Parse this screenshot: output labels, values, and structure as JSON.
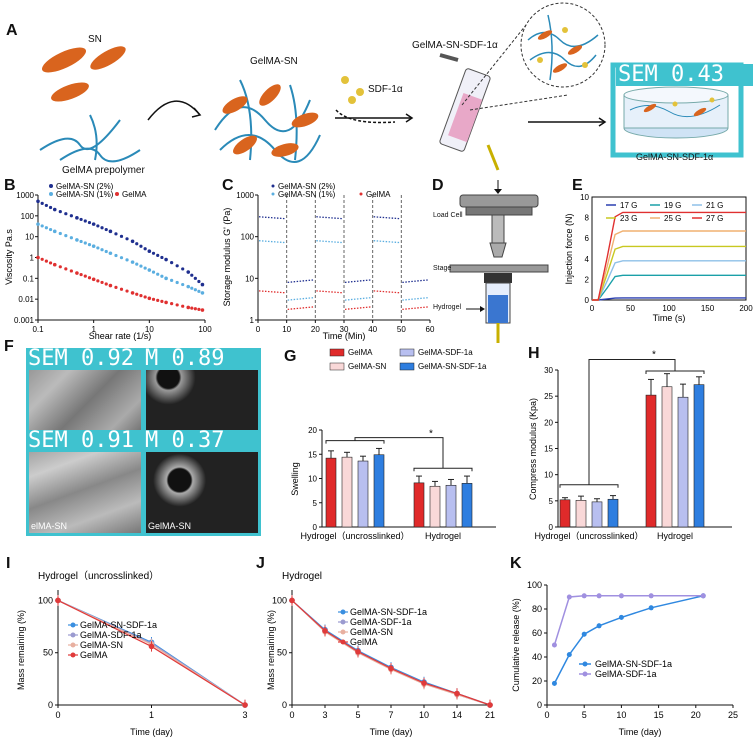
{
  "panels": {
    "A": {
      "letter": "A",
      "sn_label": "SN",
      "prepolymer_label": "GelMA prepolymer",
      "gelma_sn_label": "GelMA-SN",
      "sdf_label": "SDF-1α",
      "syringe_label": "GelMA-SN-SDF-1α",
      "sem_overlay": "SEM 0.43",
      "final_label": "GelMA-SN-SDF-1α",
      "colors": {
        "sn": "#d9641e",
        "polymer": "#2a8ab8",
        "sdf": "#e3c23a",
        "overlay": "#3fc2cf"
      }
    },
    "B": {
      "letter": "B",
      "ylabel": "Viscosity Pa.s",
      "xlabel": "Shear rate (1/s)",
      "yticks": [
        "1000",
        "100",
        "10",
        "1",
        "0.1",
        "0.01",
        "0.001"
      ],
      "xticks": [
        "0.1",
        "1",
        "10",
        "100"
      ],
      "legend": [
        "GelMA-SN (2%)",
        "GelMA-SN (1%)",
        "GelMA"
      ]
    },
    "C": {
      "letter": "C",
      "ylabel": "Storage modulus G' (Pa)",
      "xlabel": "Time (Min)",
      "yticks": [
        "1000",
        "100",
        "10",
        "1"
      ],
      "xticks": [
        "0",
        "10",
        "20",
        "30",
        "40",
        "50",
        "60"
      ],
      "legend": [
        "GelMA-SN (2%)",
        "GelMA-SN (1%)",
        "GelMA"
      ]
    },
    "D": {
      "letter": "D",
      "load_cell": "Load Cell",
      "stage": "Stage",
      "hydrogel": "Hydrogel"
    },
    "E": {
      "letter": "E",
      "ylabel": "Injection force (N)",
      "xlabel": "Time (s)",
      "yticks": [
        "0",
        "2",
        "4",
        "6",
        "8",
        "10"
      ],
      "xticks": [
        "0",
        "50",
        "100",
        "150",
        "200"
      ],
      "legend": [
        "17 G",
        "19 G",
        "21 G",
        "23 G",
        "25 G",
        "27 G"
      ]
    },
    "F": {
      "letter": "F",
      "sem1": "SEM 0.92",
      "sem2": "M 0.89",
      "sem3": "SEM 0.91",
      "sem4": "M 0.37",
      "cap1": "elMA-SN",
      "cap2": "GelMA-SN"
    },
    "G": {
      "letter": "G",
      "ylabel": "Swelling",
      "yticks": [
        "0",
        "5",
        "10",
        "15",
        "20"
      ],
      "group_labels": [
        "Hydrogel（uncrosslinked）",
        "Hydrogel"
      ],
      "legend": [
        "GelMA",
        "GelMA-SN",
        "GelMA-SDF-1a",
        "GelMA-SN-SDF-1a"
      ],
      "star": "*"
    },
    "H": {
      "letter": "H",
      "ylabel": "Compress modulus (Kpa)",
      "yticks": [
        "0",
        "5",
        "10",
        "15",
        "20",
        "25",
        "30"
      ],
      "group_labels": [
        "Hydrogel（uncrosslinked）",
        "Hydrogel"
      ],
      "star": "*"
    },
    "I": {
      "letter": "I",
      "title": "Hydrogel（uncrosslinked）",
      "ylabel": "Mass remaining (%)",
      "xlabel": "Time (day)",
      "yticks": [
        "0",
        "50",
        "100"
      ],
      "xticks": [
        "0",
        "1",
        "3"
      ],
      "legend": [
        "GelMA-SN-SDF-1a",
        "GelMA-SDF-1a",
        "GelMA-SN",
        "GelMA"
      ]
    },
    "J": {
      "letter": "J",
      "title": "Hydrogel",
      "ylabel": "Mass remaining (%)",
      "xlabel": "Time (day)",
      "yticks": [
        "0",
        "50",
        "100"
      ],
      "xticks": [
        "0",
        "3",
        "5",
        "7",
        "10",
        "14",
        "21"
      ],
      "legend": [
        "GelMA-SN-SDF-1a",
        "GelMA-SDF-1a",
        "GelMA-SN",
        "GelMA"
      ]
    },
    "K": {
      "letter": "K",
      "ylabel": "Cumulative release (%)",
      "xlabel": "Time (day)",
      "yticks": [
        "0",
        "20",
        "40",
        "60",
        "80",
        "100"
      ],
      "xticks": [
        "0",
        "5",
        "10",
        "15",
        "20",
        "25"
      ],
      "legend": [
        "GelMA-SN-SDF-1a",
        "GelMA-SDF-1a"
      ]
    }
  },
  "chart_data": [
    {
      "id": "B",
      "type": "scatter",
      "xscale": "log",
      "yscale": "log",
      "xlim": [
        0.1,
        100
      ],
      "ylim": [
        0.001,
        1000
      ],
      "series": [
        {
          "name": "GelMA-SN (2%)",
          "color": "#1f2f8f",
          "x": [
            0.1,
            0.2,
            0.5,
            1,
            2,
            5,
            10,
            20,
            50,
            90
          ],
          "y": [
            500,
            200,
            80,
            40,
            18,
            6,
            2,
            0.8,
            0.2,
            0.05
          ]
        },
        {
          "name": "GelMA-SN (1%)",
          "color": "#5aaee0",
          "x": [
            0.1,
            0.2,
            0.5,
            1,
            2,
            5,
            10,
            20,
            50,
            90
          ],
          "y": [
            40,
            18,
            7,
            3.5,
            1.6,
            0.6,
            0.25,
            0.1,
            0.04,
            0.02
          ]
        },
        {
          "name": "GelMA",
          "color": "#e03030",
          "x": [
            0.1,
            0.2,
            0.5,
            1,
            2,
            5,
            10,
            20,
            50,
            90
          ],
          "y": [
            1,
            0.45,
            0.18,
            0.09,
            0.045,
            0.02,
            0.011,
            0.007,
            0.004,
            0.003
          ]
        }
      ]
    },
    {
      "id": "C",
      "type": "line",
      "yscale": "log",
      "xlim": [
        0,
        60
      ],
      "ylim": [
        1,
        1000
      ],
      "cycle_x": [
        0,
        10,
        20,
        30,
        40,
        50,
        60
      ],
      "series": [
        {
          "name": "GelMA-SN (2%)",
          "color": "#1f2f8f",
          "high": 300,
          "low": 8
        },
        {
          "name": "GelMA-SN (1%)",
          "color": "#5aaee0",
          "high": 80,
          "low": 3
        },
        {
          "name": "GelMA",
          "color": "#e03030",
          "high": 5,
          "low": 1.8
        }
      ]
    },
    {
      "id": "E",
      "type": "line",
      "xlim": [
        0,
        200
      ],
      "ylim": [
        0,
        10
      ],
      "series": [
        {
          "name": "17 G",
          "color": "#2a3fb0",
          "plateau": 0.2
        },
        {
          "name": "19 G",
          "color": "#1aa0a8",
          "plateau": 2.4
        },
        {
          "name": "21 G",
          "color": "#8fc0e8",
          "plateau": 3.8
        },
        {
          "name": "23 G",
          "color": "#c8c820",
          "plateau": 5.2
        },
        {
          "name": "25 G",
          "color": "#f0b070",
          "plateau": 6.7
        },
        {
          "name": "27 G",
          "color": "#e03030",
          "plateau": 8.5
        }
      ]
    },
    {
      "id": "G",
      "type": "bar",
      "categories": [
        "Hydrogel（uncrosslinked）",
        "Hydrogel"
      ],
      "ylim": [
        0,
        20
      ],
      "series": [
        {
          "name": "GelMA",
          "color": "#e02a2a",
          "values": [
            14.2,
            9.1
          ],
          "err": [
            1.5,
            1.4
          ]
        },
        {
          "name": "GelMA-SN",
          "color": "#f9d8d8",
          "values": [
            14.4,
            8.4
          ],
          "err": [
            1.0,
            1.0
          ]
        },
        {
          "name": "GelMA-SDF-1a",
          "color": "#b8bff0",
          "values": [
            13.6,
            8.6
          ],
          "err": [
            1.0,
            1.2
          ]
        },
        {
          "name": "GelMA-SN-SDF-1a",
          "color": "#2e7ee0",
          "values": [
            14.9,
            9.0
          ],
          "err": [
            1.3,
            1.5
          ]
        }
      ]
    },
    {
      "id": "H",
      "type": "bar",
      "categories": [
        "Hydrogel（uncrosslinked）",
        "Hydrogel"
      ],
      "ylim": [
        0,
        30
      ],
      "series": [
        {
          "name": "GelMA",
          "color": "#e02a2a",
          "values": [
            5.2,
            25.2
          ],
          "err": [
            0.4,
            3.0
          ]
        },
        {
          "name": "GelMA-SN",
          "color": "#f9d8d8",
          "values": [
            5.1,
            26.8
          ],
          "err": [
            0.8,
            2.5
          ]
        },
        {
          "name": "GelMA-SDF-1a",
          "color": "#b8bff0",
          "values": [
            4.8,
            24.8
          ],
          "err": [
            0.6,
            2.5
          ]
        },
        {
          "name": "GelMA-SN-SDF-1a",
          "color": "#2e7ee0",
          "values": [
            5.3,
            27.2
          ],
          "err": [
            0.7,
            1.5
          ]
        }
      ]
    },
    {
      "id": "I",
      "type": "line",
      "x": [
        "0",
        "1",
        "3"
      ],
      "ylim": [
        0,
        110
      ],
      "series": [
        {
          "name": "GelMA-SN-SDF-1a",
          "color": "#3a8fe0",
          "values": [
            100,
            60,
            0
          ]
        },
        {
          "name": "GelMA-SDF-1a",
          "color": "#9b9bd0",
          "values": [
            100,
            59,
            0
          ]
        },
        {
          "name": "GelMA-SN",
          "color": "#e8b0a0",
          "values": [
            100,
            58,
            0
          ]
        },
        {
          "name": "GelMA",
          "color": "#e03a3a",
          "values": [
            100,
            56,
            0
          ]
        }
      ]
    },
    {
      "id": "J",
      "type": "line",
      "x": [
        "0",
        "3",
        "5",
        "7",
        "10",
        "14",
        "21"
      ],
      "ylim": [
        0,
        110
      ],
      "series": [
        {
          "name": "GelMA-SN-SDF-1a",
          "color": "#3a8fe0",
          "values": [
            100,
            72,
            52,
            36,
            22,
            11,
            0
          ]
        },
        {
          "name": "GelMA-SDF-1a",
          "color": "#9b9bd0",
          "values": [
            100,
            71,
            50,
            35,
            21,
            10,
            0
          ]
        },
        {
          "name": "GelMA-SN",
          "color": "#e8b0a0",
          "values": [
            100,
            70,
            50,
            34,
            20,
            10,
            0
          ]
        },
        {
          "name": "GelMA",
          "color": "#e03a3a",
          "values": [
            100,
            71,
            51,
            35,
            21,
            11,
            0
          ]
        }
      ]
    },
    {
      "id": "K",
      "type": "line",
      "xlim": [
        0,
        25
      ],
      "ylim": [
        0,
        100
      ],
      "series": [
        {
          "name": "GelMA-SN-SDF-1a",
          "color": "#2f88e0",
          "x": [
            1,
            3,
            5,
            7,
            10,
            14,
            21
          ],
          "values": [
            18,
            42,
            59,
            66,
            73,
            81,
            91
          ]
        },
        {
          "name": "GelMA-SDF-1a",
          "color": "#a090e0",
          "x": [
            1,
            3,
            5,
            7,
            10,
            14,
            21
          ],
          "values": [
            50,
            90,
            91,
            91,
            91,
            91,
            91
          ]
        }
      ]
    }
  ]
}
